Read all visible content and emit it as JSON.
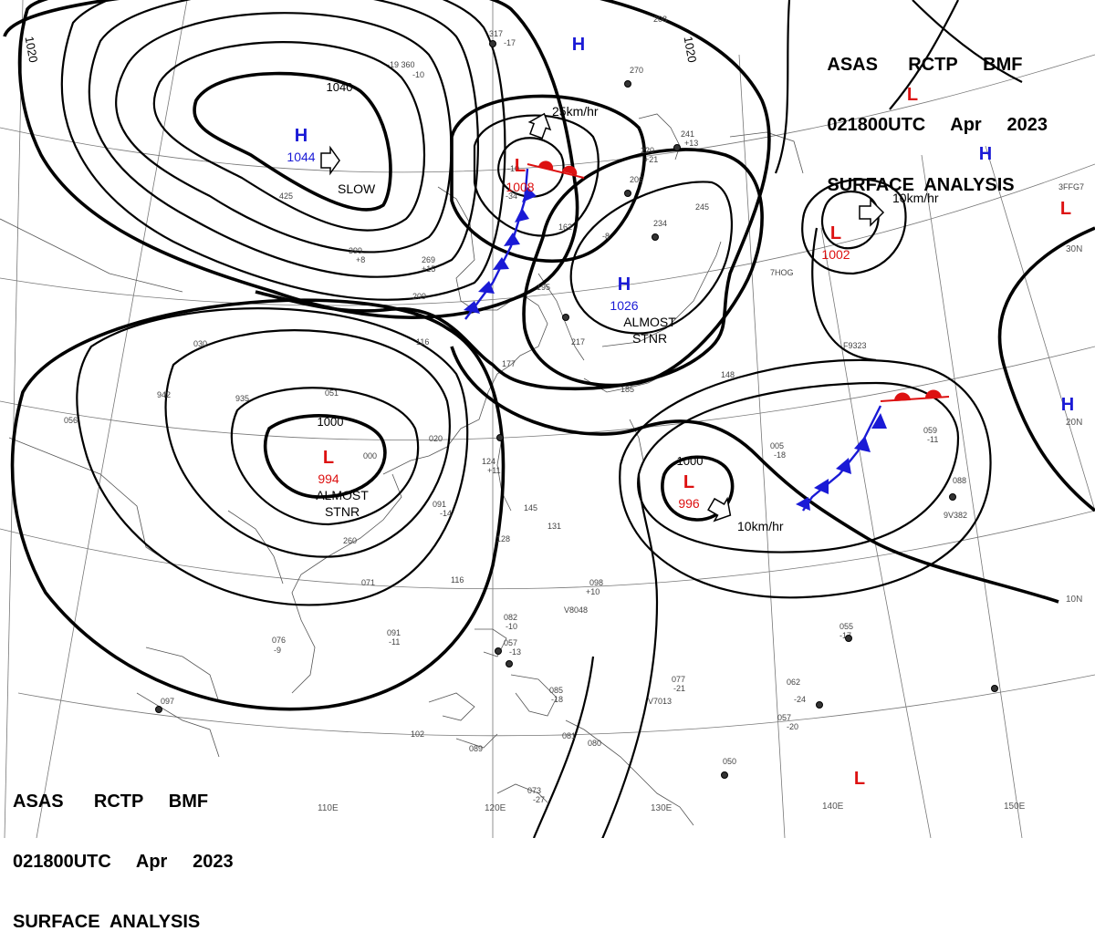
{
  "header": {
    "lines": [
      "ASAS      RCTP     BMF",
      "021800UTC     Apr     2023",
      "SURFACE  ANALYSIS"
    ]
  },
  "colors": {
    "high": "#1a1ad6",
    "low": "#dd1111",
    "cold_front": "#1a1ad6",
    "warm_front": "#dd1111",
    "isobar": "#000000"
  },
  "pressure_centers": [
    {
      "type": "H",
      "value": "1044"
    },
    {
      "type": "L",
      "value": "1008"
    },
    {
      "type": "H",
      "value": "1026"
    },
    {
      "type": "L",
      "value": "994"
    },
    {
      "type": "L",
      "value": "996"
    },
    {
      "type": "L",
      "value": "1002"
    },
    {
      "type": "H",
      "value": ""
    },
    {
      "type": "H",
      "value": ""
    },
    {
      "type": "H",
      "value": ""
    },
    {
      "type": "L",
      "value": ""
    },
    {
      "type": "L",
      "value": ""
    },
    {
      "type": "L",
      "value": ""
    }
  ],
  "isobar_labels": [
    "1040",
    "1020",
    "1020",
    "1000",
    "1000"
  ],
  "motion_labels": [
    "SLOW",
    "25km/hr",
    "10km/hr",
    "10km/hr",
    "ALMOST STNR",
    "ALMOST STNR"
  ],
  "lon_labels": [
    "110E",
    "120E",
    "130E",
    "140E",
    "150E"
  ],
  "lat_labels": [
    "30N",
    "20N",
    "10N"
  ],
  "stations": [
    "317",
    "-17",
    "-19 360",
    "-10",
    "208",
    "270",
    "241",
    "+13",
    "220",
    "+21",
    "206",
    "-34",
    "425",
    "399",
    "+8",
    "269",
    "+15",
    "209",
    "162",
    "234",
    "245",
    "195",
    "116",
    "217",
    "177",
    "185",
    "148",
    "030",
    "935",
    "051",
    "942",
    "056",
    "020",
    "000",
    "124",
    "+11",
    "091",
    "-14",
    "145",
    "131",
    "128",
    "260",
    "071",
    "116",
    "098",
    "+10",
    "V8048",
    "082",
    "-10",
    "057",
    "-13",
    "076",
    "-9",
    "091",
    "-11",
    "085",
    "-18",
    "077",
    "-21",
    "V7013",
    "062",
    "-24",
    "057",
    "-20",
    "055",
    "-17",
    "005",
    "-18",
    "059",
    "-11",
    "088",
    "9V382",
    "F9323",
    "7HOG",
    "3FFG7",
    "097",
    "102",
    "089",
    "081",
    "080",
    "073",
    "-27",
    "050",
    "-10",
    "-8"
  ]
}
